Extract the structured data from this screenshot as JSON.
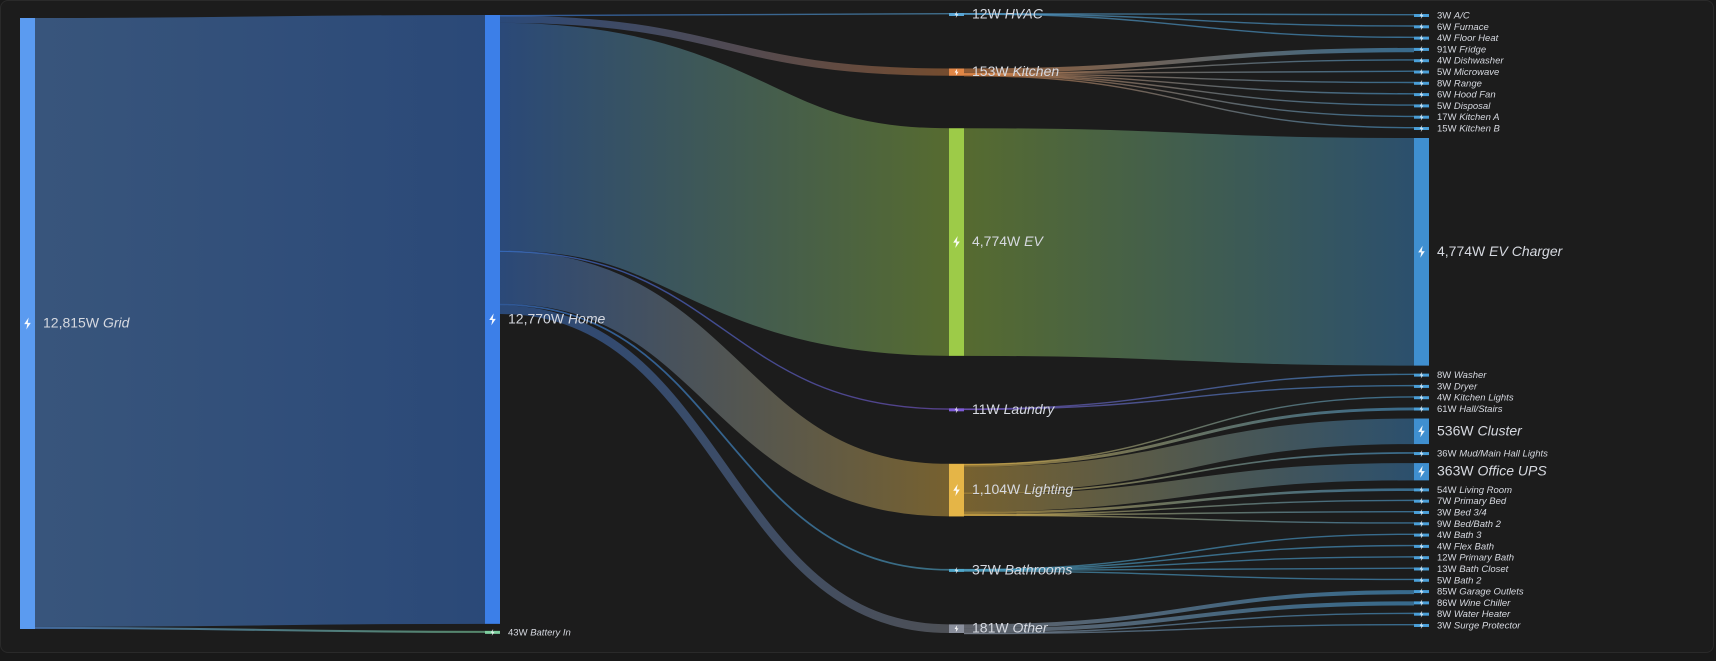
{
  "chart_data": {
    "type": "sankey",
    "unit": "W",
    "columns": [
      [
        {
          "id": "grid",
          "name": "Grid",
          "value": 12815,
          "value_label": "12,815W",
          "color": "#5b9bf0",
          "large": true
        }
      ],
      [
        {
          "id": "home",
          "name": "Home",
          "value": 12770,
          "value_label": "12,770W",
          "color": "#3c7fe8",
          "large": true
        },
        {
          "id": "battery_in",
          "name": "Battery In",
          "value": 43,
          "value_label": "43W",
          "color": "#7ecfa0",
          "large": false
        }
      ],
      [
        {
          "id": "hvac",
          "name": "HVAC",
          "value": 12,
          "value_label": "12W",
          "color": "#59a6d6",
          "large": true
        },
        {
          "id": "kitchen",
          "name": "Kitchen",
          "value": 153,
          "value_label": "153W",
          "color": "#e08646",
          "large": true
        },
        {
          "id": "ev",
          "name": "EV",
          "value": 4774,
          "value_label": "4,774W",
          "color": "#9dcb48",
          "large": true
        },
        {
          "id": "laundry",
          "name": "Laundry",
          "value": 11,
          "value_label": "11W",
          "color": "#7d5ad6",
          "large": true
        },
        {
          "id": "lighting",
          "name": "Lighting",
          "value": 1104,
          "value_label": "1,104W",
          "color": "#e5b547",
          "large": true
        },
        {
          "id": "bathrooms",
          "name": "Bathrooms",
          "value": 37,
          "value_label": "37W",
          "color": "#4fa6c9",
          "large": true
        },
        {
          "id": "other",
          "name": "Other",
          "value": 181,
          "value_label": "181W",
          "color": "#8a8f9c",
          "large": true
        }
      ],
      [
        {
          "id": "ac",
          "name": "A/C",
          "value": 3,
          "value_label": "3W",
          "color": "#4a9fd8",
          "large": false
        },
        {
          "id": "furnace",
          "name": "Furnace",
          "value": 6,
          "value_label": "6W",
          "color": "#4a9fd8",
          "large": false
        },
        {
          "id": "floor_heat",
          "name": "Floor Heat",
          "value": 4,
          "value_label": "4W",
          "color": "#4a9fd8",
          "large": false
        },
        {
          "id": "fridge",
          "name": "Fridge",
          "value": 91,
          "value_label": "91W",
          "color": "#4a9fd8",
          "large": false
        },
        {
          "id": "dishwasher",
          "name": "Dishwasher",
          "value": 4,
          "value_label": "4W",
          "color": "#4a9fd8",
          "large": false
        },
        {
          "id": "microwave",
          "name": "Microwave",
          "value": 5,
          "value_label": "5W",
          "color": "#4a9fd8",
          "large": false
        },
        {
          "id": "range",
          "name": "Range",
          "value": 8,
          "value_label": "8W",
          "color": "#4a9fd8",
          "large": false
        },
        {
          "id": "hood_fan",
          "name": "Hood Fan",
          "value": 6,
          "value_label": "6W",
          "color": "#4a9fd8",
          "large": false
        },
        {
          "id": "disposal",
          "name": "Disposal",
          "value": 5,
          "value_label": "5W",
          "color": "#4a9fd8",
          "large": false
        },
        {
          "id": "kitchen_a",
          "name": "Kitchen A",
          "value": 17,
          "value_label": "17W",
          "color": "#4a9fd8",
          "large": false
        },
        {
          "id": "kitchen_b",
          "name": "Kitchen B",
          "value": 15,
          "value_label": "15W",
          "color": "#4a9fd8",
          "large": false
        },
        {
          "id": "ev_charger",
          "name": "EV Charger",
          "value": 4774,
          "value_label": "4,774W",
          "color": "#3f8fd0",
          "large": true
        },
        {
          "id": "washer",
          "name": "Washer",
          "value": 8,
          "value_label": "8W",
          "color": "#4a9fd8",
          "large": false
        },
        {
          "id": "dryer",
          "name": "Dryer",
          "value": 3,
          "value_label": "3W",
          "color": "#4a9fd8",
          "large": false
        },
        {
          "id": "kitchen_lights",
          "name": "Kitchen Lights",
          "value": 4,
          "value_label": "4W",
          "color": "#4a9fd8",
          "large": false
        },
        {
          "id": "hall_stairs",
          "name": "Hall/Stairs",
          "value": 61,
          "value_label": "61W",
          "color": "#4a9fd8",
          "large": false
        },
        {
          "id": "cluster",
          "name": "Cluster",
          "value": 536,
          "value_label": "536W",
          "color": "#3f8fd0",
          "large": true
        },
        {
          "id": "mud_main_hall",
          "name": "Mud/Main Hall Lights",
          "value": 36,
          "value_label": "36W",
          "color": "#4a9fd8",
          "large": false
        },
        {
          "id": "office_ups",
          "name": "Office UPS",
          "value": 363,
          "value_label": "363W",
          "color": "#3f8fd0",
          "large": true
        },
        {
          "id": "living_room",
          "name": "Living Room",
          "value": 54,
          "value_label": "54W",
          "color": "#4a9fd8",
          "large": false
        },
        {
          "id": "primary_bed",
          "name": "Primary Bed",
          "value": 7,
          "value_label": "7W",
          "color": "#4a9fd8",
          "large": false
        },
        {
          "id": "bed_3_4",
          "name": "Bed 3/4",
          "value": 3,
          "value_label": "3W",
          "color": "#4a9fd8",
          "large": false
        },
        {
          "id": "bed_bath_2",
          "name": "Bed/Bath 2",
          "value": 9,
          "value_label": "9W",
          "color": "#4a9fd8",
          "large": false
        },
        {
          "id": "bath_3",
          "name": "Bath 3",
          "value": 4,
          "value_label": "4W",
          "color": "#4a9fd8",
          "large": false
        },
        {
          "id": "flex_bath",
          "name": "Flex Bath",
          "value": 4,
          "value_label": "4W",
          "color": "#4a9fd8",
          "large": false
        },
        {
          "id": "primary_bath",
          "name": "Primary Bath",
          "value": 12,
          "value_label": "12W",
          "color": "#4a9fd8",
          "large": false
        },
        {
          "id": "bath_closet",
          "name": "Bath Closet",
          "value": 13,
          "value_label": "13W",
          "color": "#4a9fd8",
          "large": false
        },
        {
          "id": "bath_2",
          "name": "Bath 2",
          "value": 5,
          "value_label": "5W",
          "color": "#4a9fd8",
          "large": false
        },
        {
          "id": "garage_outlets",
          "name": "Garage Outlets",
          "value": 85,
          "value_label": "85W",
          "color": "#4a9fd8",
          "large": false
        },
        {
          "id": "wine_chiller",
          "name": "Wine Chiller",
          "value": 86,
          "value_label": "86W",
          "color": "#4a9fd8",
          "large": false
        },
        {
          "id": "water_heater",
          "name": "Water Heater",
          "value": 8,
          "value_label": "8W",
          "color": "#4a9fd8",
          "large": false
        },
        {
          "id": "surge_protector",
          "name": "Surge Protector",
          "value": 3,
          "value_label": "3W",
          "color": "#4a9fd8",
          "large": false
        }
      ]
    ],
    "links": [
      {
        "source": "grid",
        "target": "home",
        "value": 12770
      },
      {
        "source": "grid",
        "target": "battery_in",
        "value": 43
      },
      {
        "source": "home",
        "target": "hvac",
        "value": 12
      },
      {
        "source": "home",
        "target": "kitchen",
        "value": 153
      },
      {
        "source": "home",
        "target": "ev",
        "value": 4774
      },
      {
        "source": "home",
        "target": "laundry",
        "value": 11
      },
      {
        "source": "home",
        "target": "lighting",
        "value": 1104
      },
      {
        "source": "home",
        "target": "bathrooms",
        "value": 37
      },
      {
        "source": "home",
        "target": "other",
        "value": 181
      },
      {
        "source": "hvac",
        "target": "ac",
        "value": 3
      },
      {
        "source": "hvac",
        "target": "furnace",
        "value": 6
      },
      {
        "source": "hvac",
        "target": "floor_heat",
        "value": 4
      },
      {
        "source": "kitchen",
        "target": "fridge",
        "value": 91
      },
      {
        "source": "kitchen",
        "target": "dishwasher",
        "value": 4
      },
      {
        "source": "kitchen",
        "target": "microwave",
        "value": 5
      },
      {
        "source": "kitchen",
        "target": "range",
        "value": 8
      },
      {
        "source": "kitchen",
        "target": "hood_fan",
        "value": 6
      },
      {
        "source": "kitchen",
        "target": "disposal",
        "value": 5
      },
      {
        "source": "kitchen",
        "target": "kitchen_a",
        "value": 17
      },
      {
        "source": "kitchen",
        "target": "kitchen_b",
        "value": 15
      },
      {
        "source": "ev",
        "target": "ev_charger",
        "value": 4774
      },
      {
        "source": "laundry",
        "target": "washer",
        "value": 8
      },
      {
        "source": "laundry",
        "target": "dryer",
        "value": 3
      },
      {
        "source": "lighting",
        "target": "kitchen_lights",
        "value": 4
      },
      {
        "source": "lighting",
        "target": "hall_stairs",
        "value": 61
      },
      {
        "source": "lighting",
        "target": "cluster",
        "value": 536
      },
      {
        "source": "lighting",
        "target": "mud_main_hall",
        "value": 36
      },
      {
        "source": "lighting",
        "target": "office_ups",
        "value": 363
      },
      {
        "source": "lighting",
        "target": "living_room",
        "value": 54
      },
      {
        "source": "lighting",
        "target": "primary_bed",
        "value": 7
      },
      {
        "source": "lighting",
        "target": "bed_3_4",
        "value": 3
      },
      {
        "source": "lighting",
        "target": "bed_bath_2",
        "value": 9
      },
      {
        "source": "bathrooms",
        "target": "bath_3",
        "value": 4
      },
      {
        "source": "bathrooms",
        "target": "flex_bath",
        "value": 4
      },
      {
        "source": "bathrooms",
        "target": "primary_bath",
        "value": 12
      },
      {
        "source": "bathrooms",
        "target": "bath_closet",
        "value": 13
      },
      {
        "source": "bathrooms",
        "target": "bath_2",
        "value": 5
      },
      {
        "source": "other",
        "target": "garage_outlets",
        "value": 85
      },
      {
        "source": "other",
        "target": "wine_chiller",
        "value": 86
      },
      {
        "source": "other",
        "target": "water_heater",
        "value": 8
      },
      {
        "source": "other",
        "target": "surge_protector",
        "value": 3
      }
    ],
    "legend": "none",
    "grid": false
  }
}
